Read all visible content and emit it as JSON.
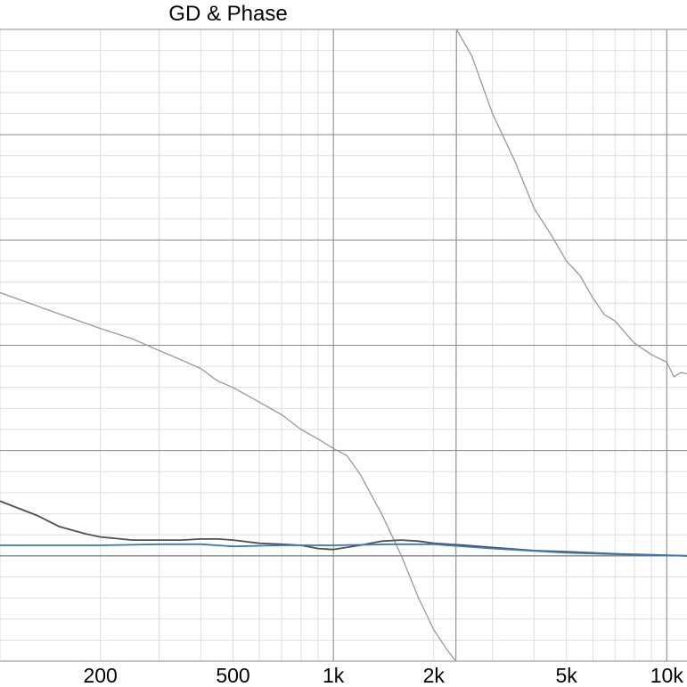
{
  "chart_data": {
    "type": "line",
    "title": "GD & Phase",
    "x_scale": "log",
    "xlim": [
      100,
      11500
    ],
    "x_ticks": [
      {
        "value": 200,
        "label": "200"
      },
      {
        "value": 500,
        "label": "500"
      },
      {
        "value": 1000,
        "label": "1k"
      },
      {
        "value": 2000,
        "label": "2k"
      },
      {
        "value": 5000,
        "label": "5k"
      },
      {
        "value": 10000,
        "label": "10k"
      }
    ],
    "ylim": [
      -1.0,
      5.0
    ],
    "grid": true,
    "series": [
      {
        "color": "#9a9a9a",
        "points": [
          [
            100,
            2.5
          ],
          [
            150,
            2.3
          ],
          [
            200,
            2.16
          ],
          [
            250,
            2.06
          ],
          [
            300,
            1.95
          ],
          [
            350,
            1.86
          ],
          [
            400,
            1.78
          ],
          [
            450,
            1.66
          ],
          [
            500,
            1.6
          ],
          [
            600,
            1.46
          ],
          [
            700,
            1.34
          ],
          [
            800,
            1.2
          ],
          [
            900,
            1.11
          ],
          [
            1000,
            1.02
          ],
          [
            1100,
            0.95
          ],
          [
            1200,
            0.78
          ],
          [
            1400,
            0.39
          ],
          [
            1600,
            0.0
          ],
          [
            1800,
            -0.4
          ],
          [
            2000,
            -0.7
          ],
          [
            2200,
            -0.9
          ],
          [
            2330,
            -1.0
          ],
          [
            2340,
            5.0
          ],
          [
            2600,
            4.75
          ],
          [
            3000,
            4.2
          ],
          [
            3500,
            3.75
          ],
          [
            4000,
            3.3
          ],
          [
            4500,
            3.05
          ],
          [
            5000,
            2.8
          ],
          [
            5500,
            2.66
          ],
          [
            6000,
            2.45
          ],
          [
            6500,
            2.29
          ],
          [
            7000,
            2.23
          ],
          [
            7500,
            2.12
          ],
          [
            8000,
            2.02
          ],
          [
            9000,
            1.91
          ],
          [
            10000,
            1.84
          ],
          [
            10500,
            1.7
          ],
          [
            11000,
            1.74
          ],
          [
            11500,
            1.73
          ]
        ]
      },
      {
        "color": "#505050",
        "points": [
          [
            100,
            0.52
          ],
          [
            130,
            0.38
          ],
          [
            150,
            0.28
          ],
          [
            180,
            0.21
          ],
          [
            200,
            0.18
          ],
          [
            250,
            0.15
          ],
          [
            300,
            0.15
          ],
          [
            350,
            0.15
          ],
          [
            400,
            0.16
          ],
          [
            450,
            0.16
          ],
          [
            500,
            0.15
          ],
          [
            600,
            0.12
          ],
          [
            700,
            0.11
          ],
          [
            800,
            0.1
          ],
          [
            900,
            0.07
          ],
          [
            1000,
            0.06
          ],
          [
            1200,
            0.1
          ],
          [
            1400,
            0.14
          ],
          [
            1600,
            0.15
          ],
          [
            1800,
            0.14
          ],
          [
            2000,
            0.12
          ],
          [
            2500,
            0.1
          ],
          [
            3000,
            0.08
          ],
          [
            4000,
            0.05
          ],
          [
            5000,
            0.04
          ],
          [
            7000,
            0.02
          ],
          [
            9000,
            0.01
          ],
          [
            11500,
            0.0
          ]
        ]
      },
      {
        "color": "#3b78b6",
        "points": [
          [
            100,
            0.1
          ],
          [
            200,
            0.1
          ],
          [
            300,
            0.11
          ],
          [
            400,
            0.11
          ],
          [
            500,
            0.09
          ],
          [
            700,
            0.1
          ],
          [
            1000,
            0.1
          ],
          [
            1500,
            0.11
          ],
          [
            2000,
            0.11
          ],
          [
            3000,
            0.07
          ],
          [
            5000,
            0.03
          ],
          [
            8000,
            0.01
          ],
          [
            11500,
            0.0
          ]
        ]
      }
    ]
  }
}
